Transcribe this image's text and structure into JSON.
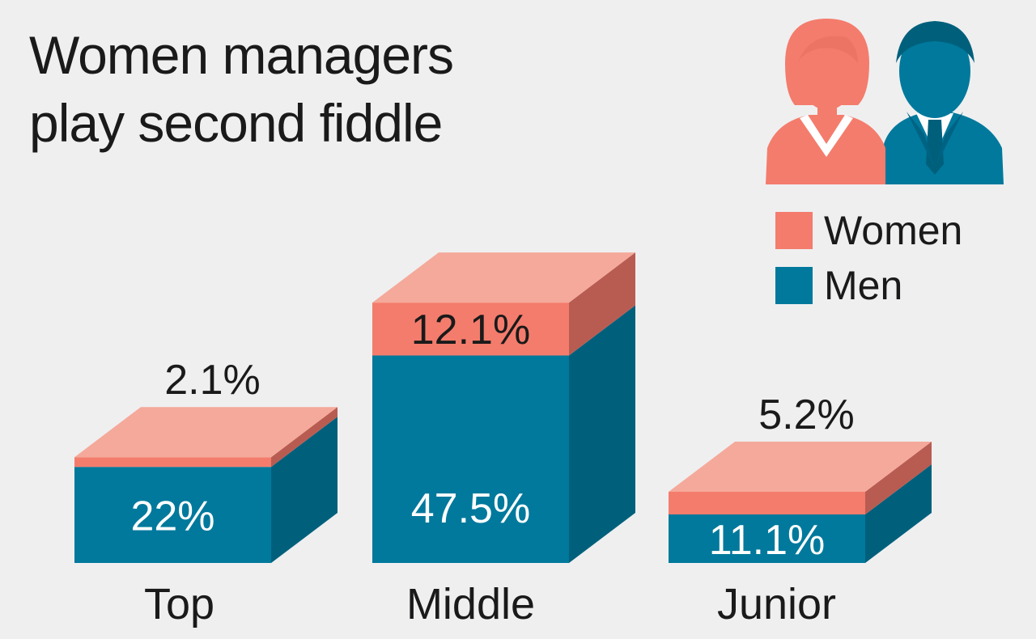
{
  "title": {
    "line1": "Women managers",
    "line2": "play second fiddle"
  },
  "legend": {
    "women": "Women",
    "men": "Men"
  },
  "icon": "man-and-woman-managers-icon",
  "colors": {
    "women_front": "#f47c6c",
    "women_top": "#f5a99a",
    "women_side": "#b85c52",
    "men_front": "#00799c",
    "men_side": "#00607c",
    "text_dark": "#1a1a1a",
    "text_light": "#ffffff"
  },
  "chart_data": {
    "type": "bar",
    "stacked": true,
    "unit": "%",
    "categories": [
      "Top",
      "Middle",
      "Junior"
    ],
    "series": [
      {
        "name": "Men",
        "values": [
          22,
          47.5,
          11.1
        ]
      },
      {
        "name": "Women",
        "values": [
          2.1,
          12.1,
          5.2
        ]
      }
    ],
    "value_labels": {
      "Men": [
        "22%",
        "47.5%",
        "11.1%"
      ],
      "Women": [
        "2.1%",
        "12.1%",
        "5.2%"
      ]
    },
    "title": "Women managers play second fiddle",
    "legend_position": "top-right",
    "grid": false
  }
}
